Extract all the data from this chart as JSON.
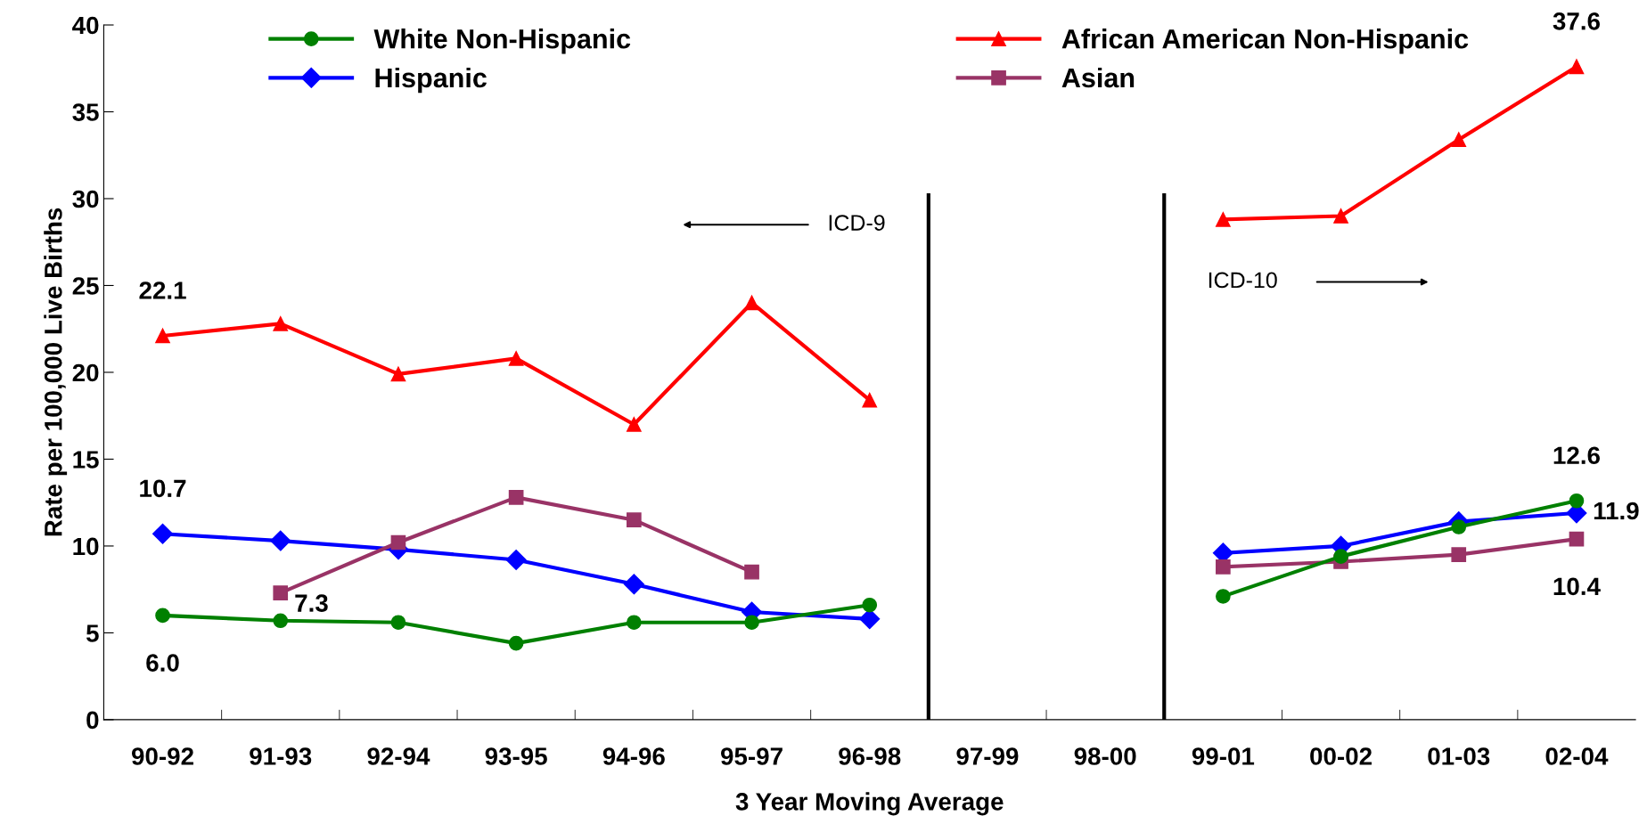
{
  "chart_data": {
    "type": "line",
    "xlabel": "3 Year Moving Average",
    "ylabel": "Rate per 100,000 Live Births",
    "categories": [
      "90-92",
      "91-93",
      "92-94",
      "93-95",
      "94-96",
      "95-97",
      "96-98",
      "97-99",
      "98-00",
      "99-01",
      "00-02",
      "01-03",
      "02-04"
    ],
    "series": [
      {
        "name": "White Non-Hispanic",
        "color": "#008000",
        "marker": "circle",
        "values": [
          6.0,
          5.7,
          5.6,
          4.4,
          5.6,
          5.6,
          6.6,
          null,
          null,
          7.1,
          9.4,
          11.1,
          12.6
        ],
        "value_labels": [
          "6.0",
          null,
          null,
          null,
          null,
          null,
          null,
          null,
          null,
          null,
          null,
          null,
          "12.6"
        ]
      },
      {
        "name": "Hispanic",
        "color": "#0000ff",
        "marker": "diamond",
        "values": [
          10.7,
          10.3,
          9.8,
          9.2,
          7.8,
          6.2,
          5.8,
          null,
          null,
          9.6,
          10.0,
          11.4,
          11.9
        ],
        "value_labels": [
          "10.7",
          null,
          null,
          null,
          null,
          null,
          null,
          null,
          null,
          null,
          null,
          null,
          "11.9"
        ]
      },
      {
        "name": "African American Non-Hispanic",
        "color": "#ff0000",
        "marker": "triangle",
        "values": [
          22.1,
          22.8,
          19.9,
          20.8,
          17.0,
          24.0,
          18.4,
          null,
          null,
          28.8,
          29.0,
          33.4,
          37.6
        ],
        "value_labels": [
          "22.1",
          null,
          null,
          null,
          null,
          null,
          null,
          null,
          null,
          null,
          null,
          null,
          "37.6"
        ]
      },
      {
        "name": "Asian",
        "color": "#993366",
        "marker": "square",
        "values": [
          null,
          7.3,
          10.2,
          12.8,
          11.5,
          8.5,
          null,
          null,
          null,
          8.8,
          9.1,
          9.5,
          10.4
        ],
        "value_labels": [
          null,
          "7.3",
          null,
          null,
          null,
          null,
          null,
          null,
          null,
          null,
          null,
          null,
          "10.4"
        ]
      }
    ],
    "ylim": [
      0,
      40
    ],
    "yticks": [
      0,
      5,
      10,
      15,
      20,
      25,
      30,
      35,
      40
    ],
    "annotations": [
      "ICD-9",
      "ICD-10"
    ],
    "grid": false,
    "legend": "top",
    "line_style": "solid"
  }
}
